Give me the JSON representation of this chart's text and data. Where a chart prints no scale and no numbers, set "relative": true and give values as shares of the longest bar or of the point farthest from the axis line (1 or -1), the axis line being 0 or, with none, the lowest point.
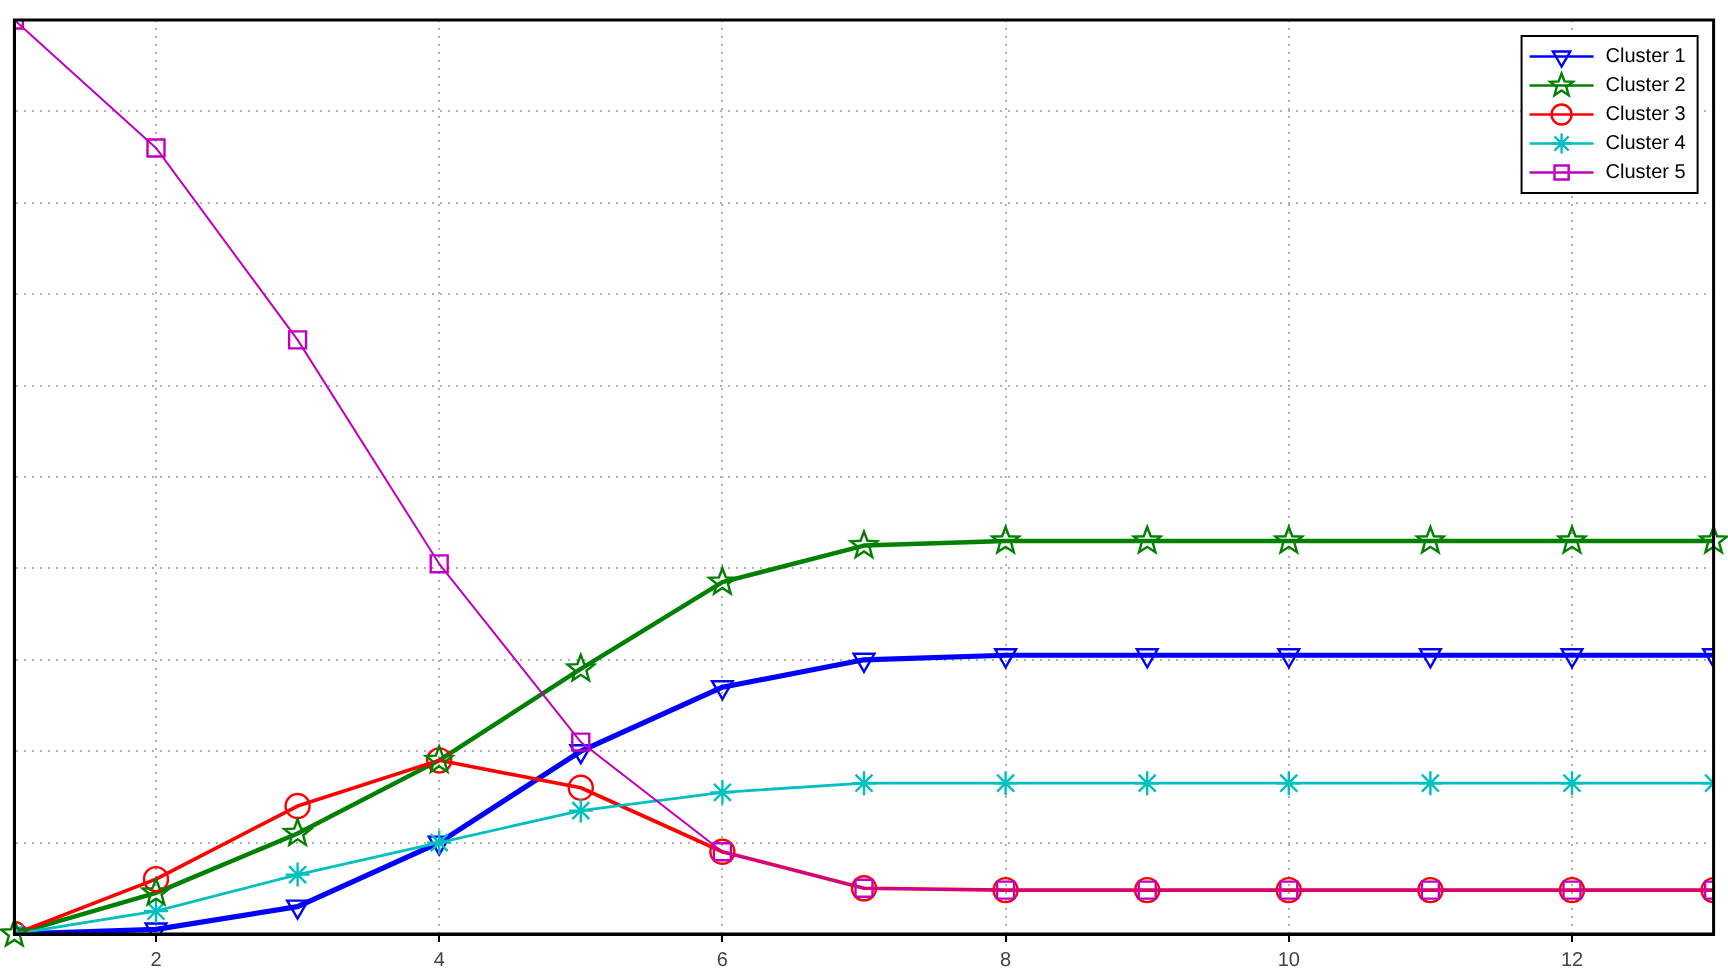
{
  "chart_data": {
    "type": "line",
    "relative": true,
    "x": [
      1,
      2,
      3,
      4,
      5,
      6,
      7,
      8,
      9,
      10,
      11,
      12,
      13
    ],
    "xlim": [
      1,
      13
    ],
    "xticks": [
      2,
      4,
      6,
      8,
      10,
      12
    ],
    "tick_labels": "x",
    "grid": true,
    "legend": "top right",
    "series": [
      {
        "name": "Cluster 1",
        "color": "#0000ff",
        "marker": "triangle",
        "values": [
          0,
          0.005,
          0.03,
          0.1,
          0.2,
          0.27,
          0.3,
          0.305,
          0.305,
          0.305,
          0.305,
          0.305,
          0.305
        ]
      },
      {
        "name": "Cluster 2",
        "color": "#008000",
        "marker": "star",
        "values": [
          0,
          0.045,
          0.11,
          0.19,
          0.29,
          0.385,
          0.425,
          0.43,
          0.43,
          0.43,
          0.43,
          0.43,
          0.43
        ]
      },
      {
        "name": "Cluster 3",
        "color": "#ff0000",
        "marker": "circle",
        "values": [
          0,
          0.06,
          0.14,
          0.19,
          0.16,
          0.09,
          0.05,
          0.048,
          0.048,
          0.048,
          0.048,
          0.048,
          0.048
        ]
      },
      {
        "name": "Cluster 4",
        "color": "#00bfbf",
        "marker": "cross",
        "values": [
          0,
          0.025,
          0.065,
          0.1,
          0.135,
          0.155,
          0.165,
          0.165,
          0.165,
          0.165,
          0.165,
          0.165,
          0.165
        ]
      },
      {
        "name": "Cluster 5",
        "color": "#bf00bf",
        "marker": "square",
        "values": [
          1,
          0.86,
          0.65,
          0.405,
          0.21,
          0.09,
          0.05,
          0.048,
          0.048,
          0.048,
          0.048,
          0.048,
          0.048
        ]
      }
    ]
  }
}
